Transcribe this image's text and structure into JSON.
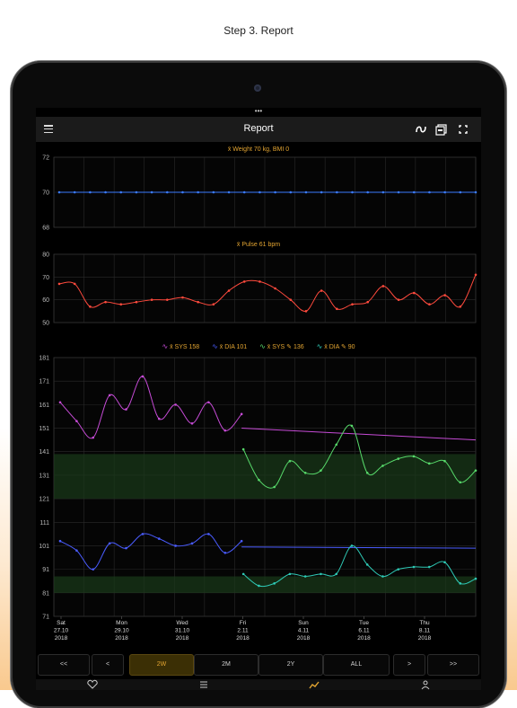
{
  "caption": "Step 3. Report",
  "app": {
    "title": "Report",
    "top_dots": "•••"
  },
  "toolbar_icons": [
    "menu-icon",
    "curve-icon",
    "pdf-icon",
    "fullscreen-icon"
  ],
  "colors": {
    "weight": "#3b7bff",
    "pulse": "#ff4a3d",
    "sys_main": "#c64bd6",
    "dia_main": "#4a5cff",
    "sys_alt": "#57d96a",
    "dia_alt": "#2ec9b5",
    "label": "#e2a431",
    "band": "#1a3a1a"
  },
  "x_labels": [
    {
      "day": "Sat",
      "date": "27.10",
      "year": "2018"
    },
    {
      "day": "Mon",
      "date": "29.10",
      "year": "2018"
    },
    {
      "day": "Wed",
      "date": "31.10",
      "year": "2018"
    },
    {
      "day": "Fri",
      "date": "2.11",
      "year": "2018"
    },
    {
      "day": "Sun",
      "date": "4.11",
      "year": "2018"
    },
    {
      "day": "Tue",
      "date": "6.11",
      "year": "2018"
    },
    {
      "day": "Thu",
      "date": "8.11",
      "year": "2018"
    }
  ],
  "legend": {
    "sys": "x̄ SYS 158",
    "dia": "x̄ DIA 101",
    "sys_alt": "x̄ SYS ✎ 136",
    "dia_alt": "x̄ DIA ✎ 90"
  },
  "tabs": [
    "<<",
    "<",
    "2W",
    "2M",
    "2Y",
    "ALL",
    ">",
    ">>"
  ],
  "active_tab": "2W",
  "nav_icons": [
    "heart-icon",
    "list-icon",
    "chart-icon",
    "person-icon"
  ],
  "chart_data": [
    {
      "type": "line",
      "title": "x̄ Weight 70 kg, BMI 0",
      "yticks": [
        72,
        70,
        68
      ],
      "ylim": [
        68,
        72
      ],
      "grid": true,
      "series": [
        {
          "values": [
            70,
            70,
            70,
            70,
            70,
            70,
            70,
            70,
            70,
            70,
            70,
            70,
            70,
            70,
            70,
            70,
            70,
            70,
            70,
            70,
            70,
            70,
            70,
            70,
            70,
            70,
            70,
            70
          ]
        }
      ]
    },
    {
      "type": "line",
      "title": "x̄ Pulse 61 bpm",
      "yticks": [
        80,
        70,
        60,
        50
      ],
      "ylim": [
        50,
        80
      ],
      "grid": true,
      "series": [
        {
          "values": [
            67,
            67,
            57,
            59,
            58,
            59,
            60,
            60,
            61,
            59,
            58,
            64,
            68,
            68,
            65,
            60,
            55,
            64,
            56,
            58,
            59,
            66,
            60,
            63,
            58,
            62,
            57,
            71
          ]
        }
      ]
    },
    {
      "type": "line",
      "title": "",
      "yticks": [
        181,
        171,
        161,
        151,
        141,
        131,
        121,
        111,
        101,
        91,
        81,
        71
      ],
      "ylim": [
        71,
        181
      ],
      "grid": true,
      "bands": [
        [
          121,
          140
        ],
        [
          81,
          88
        ]
      ],
      "series": [
        {
          "name": "x̄ SYS 158",
          "values": [
            162,
            154,
            147,
            165,
            159,
            173,
            155,
            161,
            153,
            162,
            150,
            157,
            151
          ]
        },
        {
          "name": "x̄ DIA 101",
          "values": [
            103,
            99,
            91,
            102,
            100,
            106,
            104,
            101,
            102,
            106,
            98,
            103,
            100
          ]
        },
        {
          "name": "x̄ SYS ✎ 136",
          "values": [
            142,
            129,
            126,
            137,
            132,
            133,
            144,
            152,
            132,
            135,
            138,
            139,
            136,
            137,
            128,
            133
          ]
        },
        {
          "name": "x̄ DIA ✎ 90",
          "values": [
            89,
            84,
            85,
            89,
            88,
            89,
            89,
            101,
            93,
            88,
            91,
            92,
            92,
            94,
            85,
            87
          ]
        }
      ]
    }
  ]
}
